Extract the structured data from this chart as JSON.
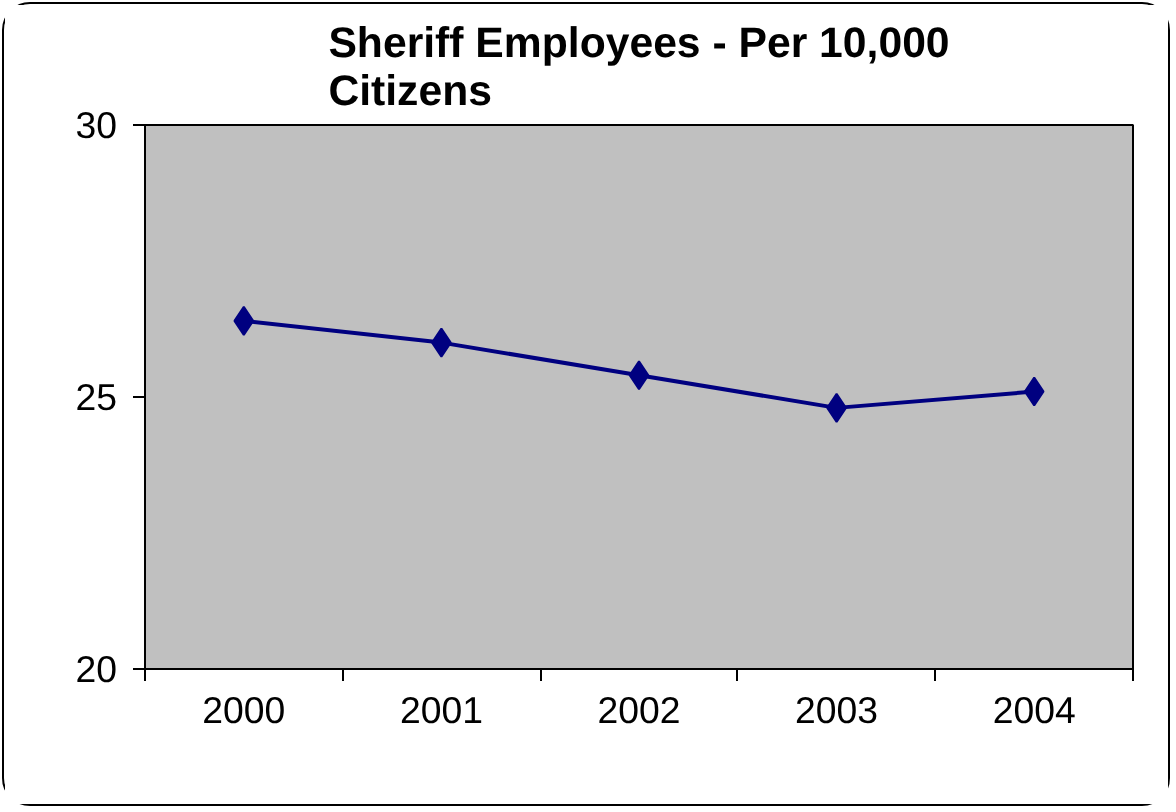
{
  "chart_data": {
    "type": "line",
    "title": "Sheriff Employees - Per 10,000 Citizens",
    "categories": [
      "2000",
      "2001",
      "2002",
      "2003",
      "2004"
    ],
    "series": [
      {
        "color": "#000080",
        "values": [
          26.4,
          26.0,
          25.4,
          24.8,
          25.1
        ]
      }
    ],
    "ylim": [
      20,
      30
    ],
    "yticks": [
      20,
      25,
      30
    ],
    "grid": false,
    "marker": "diamond",
    "line_style": "solid"
  }
}
